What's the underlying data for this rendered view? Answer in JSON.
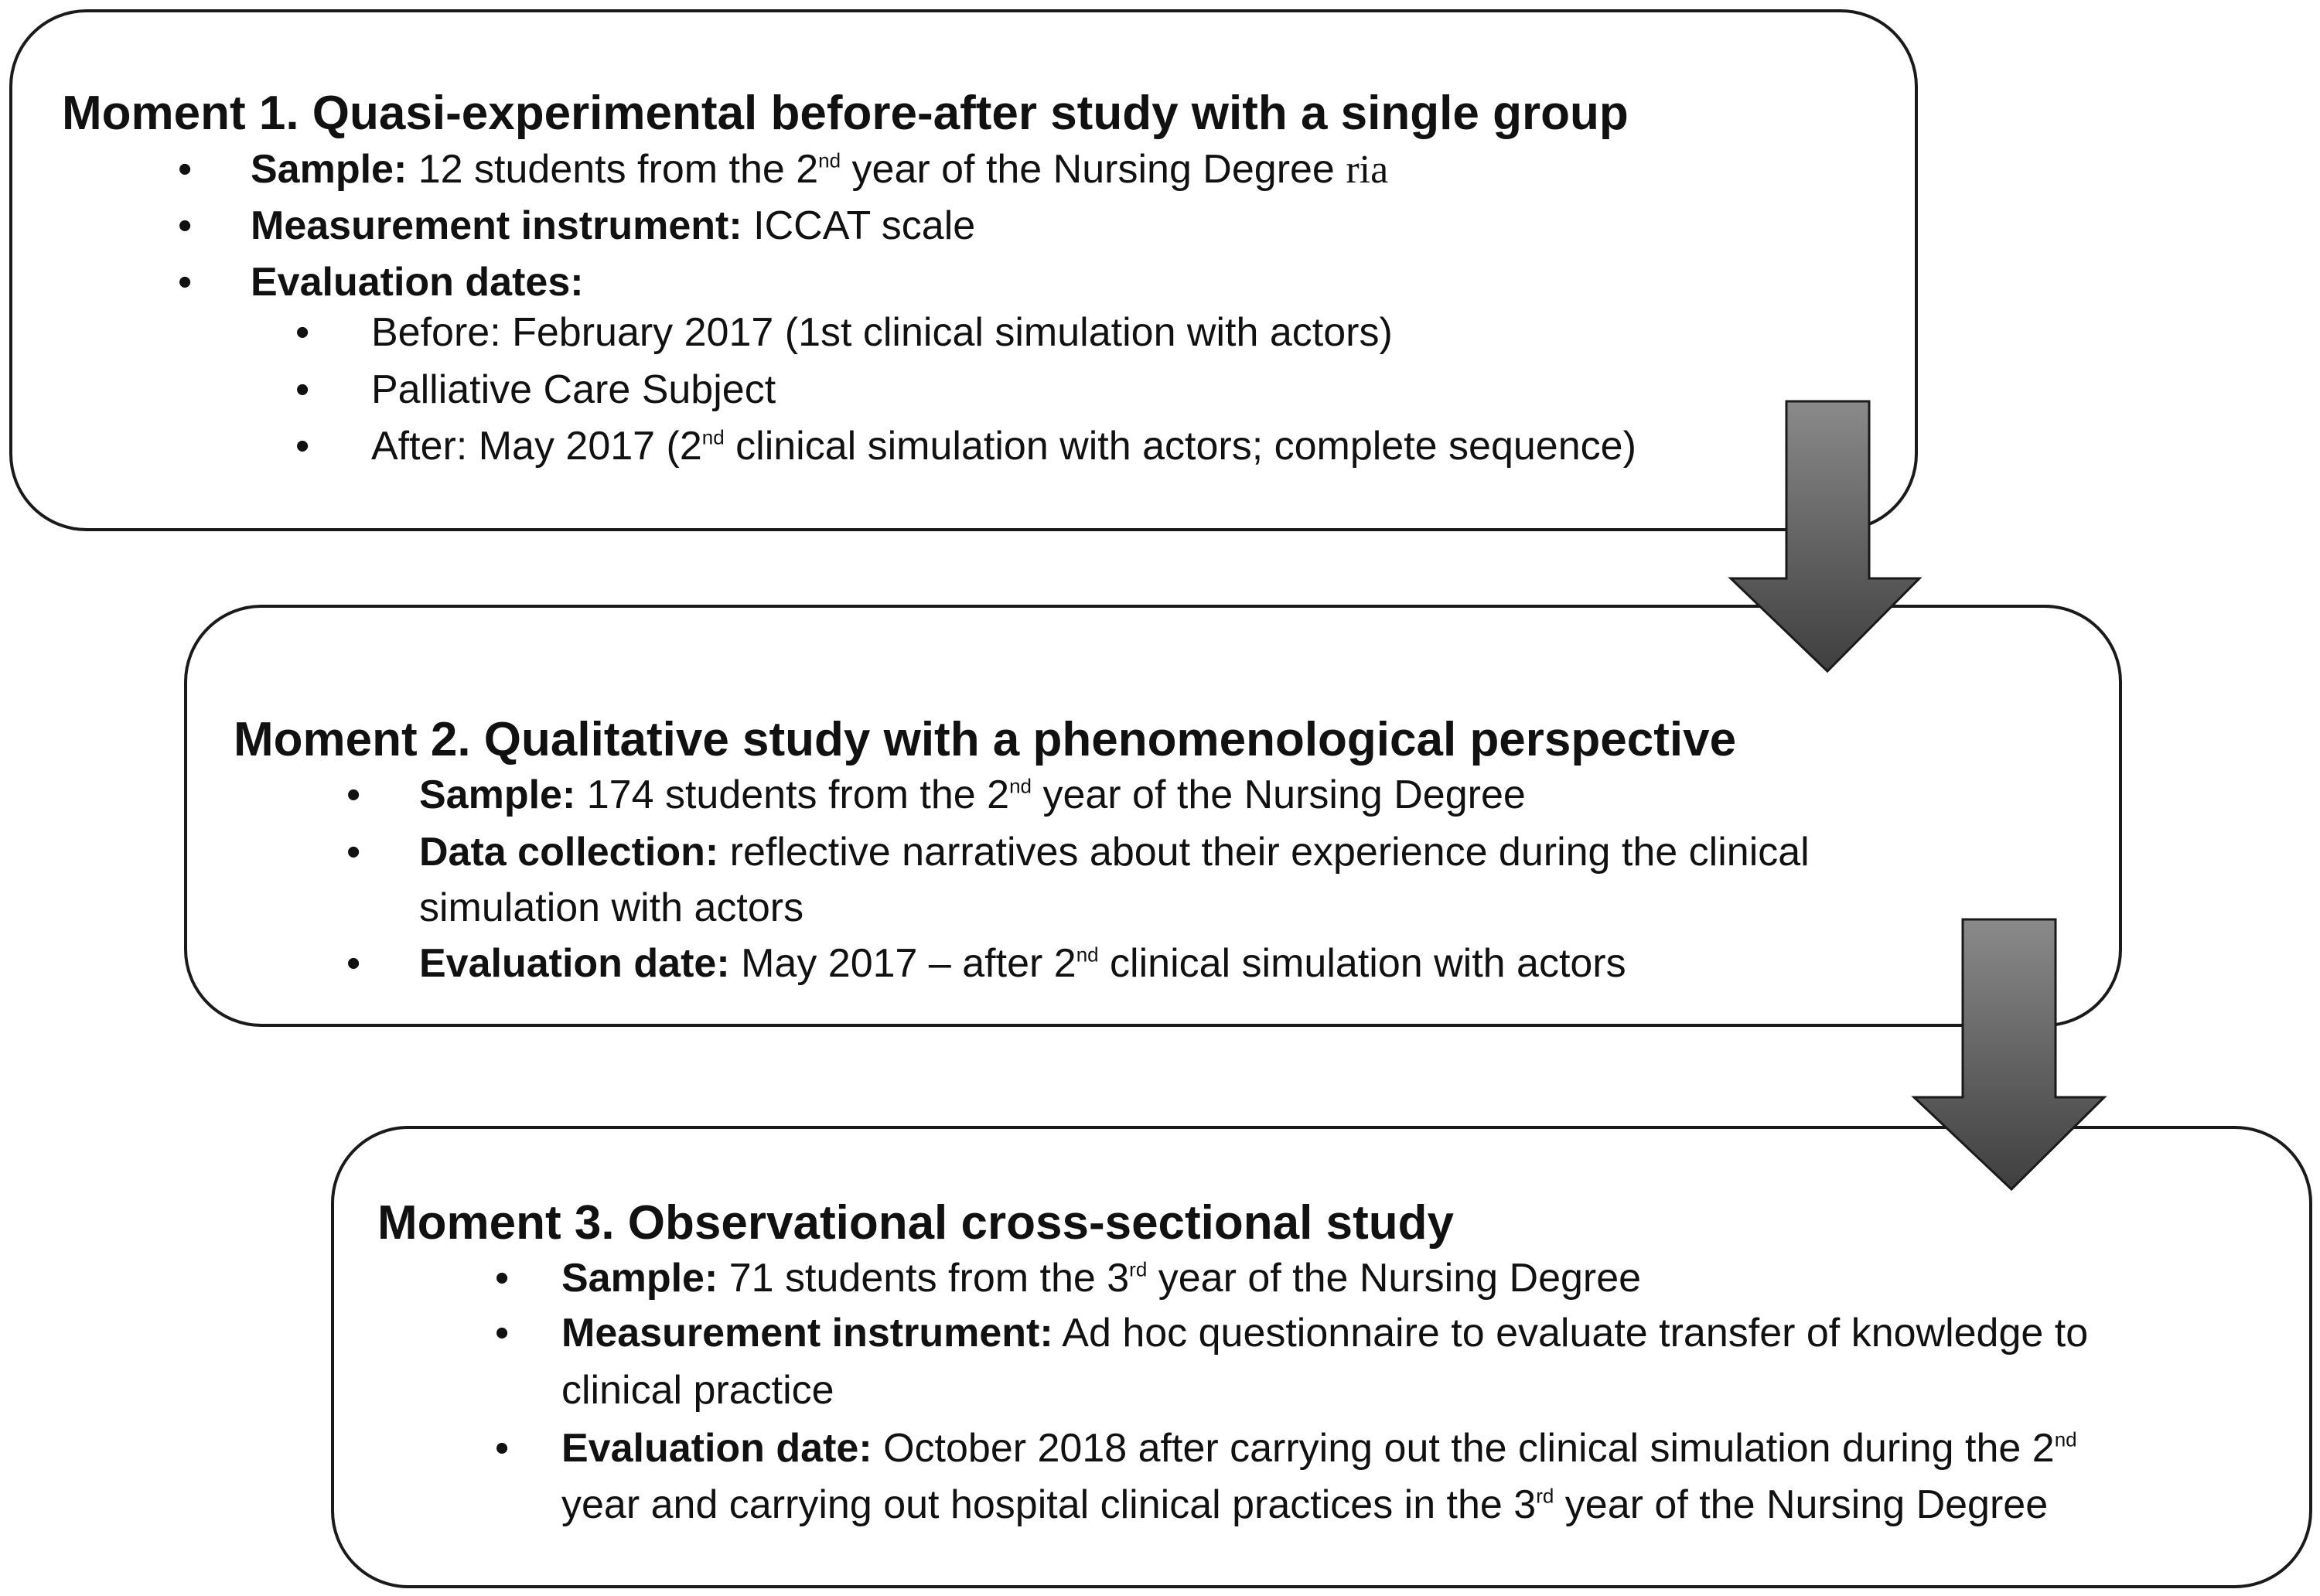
{
  "moment1": {
    "title": "Moment 1. Quasi-experimental before-after study with a single group",
    "sample_label": "Sample:",
    "sample_a": " 12 students from the 2",
    "sample_sup": "nd",
    "sample_b": " year of the Nursing Degree ",
    "sample_stray": "ria",
    "instrument_label": "Measurement instrument:",
    "instrument_text": " ICCAT scale",
    "dates_label": "Evaluation dates:",
    "before": "Before: February 2017 (1st clinical simulation with actors)",
    "subject": "Palliative Care Subject",
    "after_a": "After: May 2017 (2",
    "after_sup": "nd",
    "after_b": " clinical simulation with actors; complete sequence)"
  },
  "moment2": {
    "title": "Moment 2. Qualitative study with a phenomenological perspective",
    "sample_label": "Sample:",
    "sample_a": " 174 students from the 2",
    "sample_sup": "nd",
    "sample_b": " year of the Nursing Degree",
    "collection_label": "Data collection:",
    "collection_line1": " reflective narratives about their experience during the clinical",
    "collection_line2": "simulation with actors",
    "date_label": "Evaluation date:",
    "date_a": " May 2017 – after 2",
    "date_sup": "nd",
    "date_b": " clinical simulation with actors"
  },
  "moment3": {
    "title": "Moment 3. Observational cross-sectional study",
    "sample_label": "Sample:",
    "sample_a": " 71 students from the 3",
    "sample_sup": "rd",
    "sample_b": " year of the Nursing Degree",
    "instrument_label": "Measurement instrument:",
    "instrument_line1": " Ad hoc questionnaire to evaluate transfer of knowledge to",
    "instrument_line2": "clinical practice",
    "date_label": "Evaluation date:",
    "date_line1_a": " October 2018 after carrying out the clinical simulation during the 2",
    "date_line1_sup": "nd",
    "date_line2_a": "year and carrying out hospital clinical practices in the 3",
    "date_line2_sup": "rd",
    "date_line2_b": " year of the Nursing Degree"
  },
  "bullet": "•",
  "colors": {
    "border": "#1a1a1a",
    "arrow_top": "#8a8a8a",
    "arrow_bottom": "#3f3f3f"
  }
}
